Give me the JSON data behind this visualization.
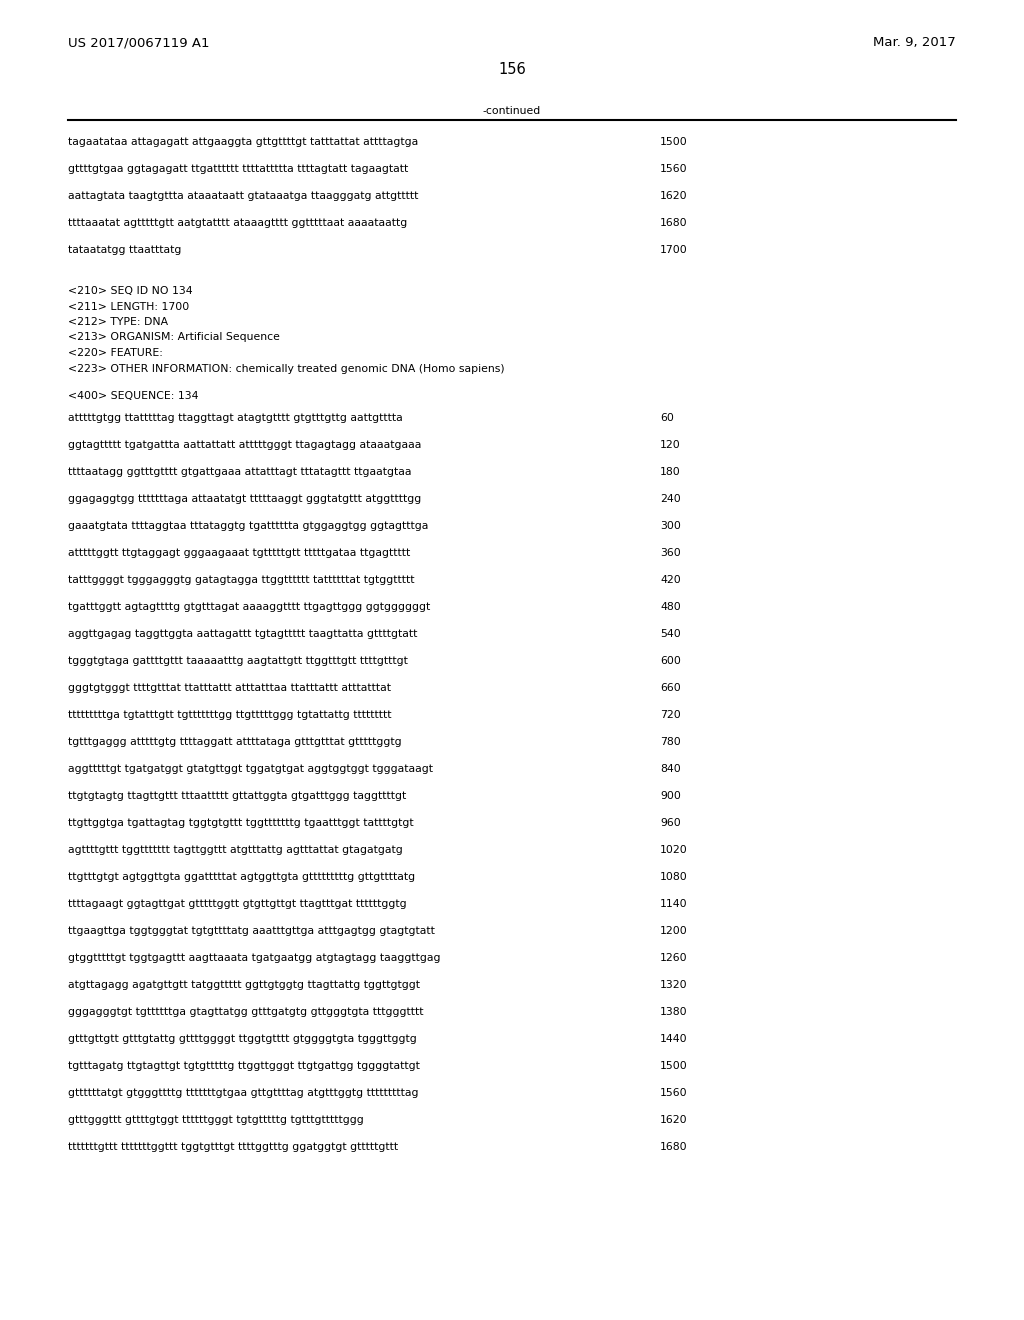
{
  "header_left": "US 2017/0067119 A1",
  "header_right": "Mar. 9, 2017",
  "page_number": "156",
  "continued_label": "-continued",
  "background_color": "#ffffff",
  "text_color": "#000000",
  "font_size_header": 9.5,
  "font_size_body": 7.8,
  "font_size_page": 10.5,
  "cont_lines": [
    [
      "tagaatataa attagagatt attgaaggta gttgttttgt tatttattat attttagtga",
      "1500"
    ],
    [
      "gttttgtgaa ggtagagatt ttgatttttt ttttattttta ttttagtatt tagaagtatt",
      "1560"
    ],
    [
      "aattagtata taagtgttta ataaataatt gtataaatga ttaagggatg attgttttt",
      "1620"
    ],
    [
      "ttttaaatat agtttttgtt aatgtatttt ataaagtttt ggtttttaat aaaataattg",
      "1680"
    ],
    [
      "tataatatgg ttaatttatg",
      "1700"
    ]
  ],
  "meta_lines": [
    "<210> SEQ ID NO 134",
    "<211> LENGTH: 1700",
    "<212> TYPE: DNA",
    "<213> ORGANISM: Artificial Sequence",
    "<220> FEATURE:",
    "<223> OTHER INFORMATION: chemically treated genomic DNA (Homo sapiens)"
  ],
  "seq_header": "<400> SEQUENCE: 134",
  "seq_lines": [
    [
      "atttttgtgg ttatttttag ttaggttagt atagtgtttt gtgtttgttg aattgtttta",
      "60"
    ],
    [
      "ggtagttttt tgatgattta aattattatt atttttgggt ttagagtagg ataaatgaaa",
      "120"
    ],
    [
      "ttttaatagg ggtttgtttt gtgattgaaa attatttagt tttatagttt ttgaatgtaa",
      "180"
    ],
    [
      "ggagaggtgg tttttttaga attaatatgt tttttaaggt gggtatgttt atggttttgg",
      "240"
    ],
    [
      "gaaatgtata ttttaggtaa tttataggtg tgatttttta gtggaggtgg ggtagtttga",
      "300"
    ],
    [
      "atttttggtt ttgtaggagt gggaagaaat tgtttttgtt tttttgataa ttgagttttt",
      "360"
    ],
    [
      "tatttggggt tgggagggtg gatagtagga ttggtttttt tattttttat tgtggttttt",
      "420"
    ],
    [
      "tgatttggtt agtagttttg gtgtttagat aaaaggtttt ttgagttggg ggtggggggt",
      "480"
    ],
    [
      "aggttgagag taggttggta aattagattt tgtagttttt taagttatta gttttgtatt",
      "540"
    ],
    [
      "tgggtgtaga gattttgttt taaaaatttg aagtattgtt ttggtttgtt ttttgtttgt",
      "600"
    ],
    [
      "gggtgtgggt ttttgtttat ttatttattt atttatttaa ttatttattt atttatttat",
      "660"
    ],
    [
      "tttttttttga tgtatttgtt tgtttttttgg ttgtttttggg tgtattattg ttttttttt",
      "720"
    ],
    [
      "tgtttgaggg atttttgtg ttttaggatt attttataga gtttgtttat gtttttggtg",
      "780"
    ],
    [
      "aggtttttgt tgatgatggt gtatgttggt tggatgtgat aggtggtggt tgggataagt",
      "840"
    ],
    [
      "ttgtgtagtg ttagttgttt tttaattttt gttattggta gtgatttggg taggttttgt",
      "900"
    ],
    [
      "ttgttggtga tgattagtag tggtgtgttt tggtttttttg tgaatttggt tattttgtgt",
      "960"
    ],
    [
      "agttttgttt tggttttttt tagttggttt atgtttattg agtttattat gtagatgatg",
      "1020"
    ],
    [
      "ttgtttgtgt agtggttgta ggatttttat agtggttgta gtttttttttg gttgttttatg",
      "1080"
    ],
    [
      "ttttagaagt ggtagttgat gtttttggtt gtgttgttgt ttagtttgat ttttttggtg",
      "1140"
    ],
    [
      "ttgaagttga tggtgggtat tgtgttttatg aaatttgttga atttgagtgg gtagtgtatt",
      "1200"
    ],
    [
      "gtggtttttgt tggtgagttt aagttaaata tgatgaatgg atgtagtagg taaggttgag",
      "1260"
    ],
    [
      "atgttagagg agatgttgtt tatggttttt ggttgtggtg ttagttattg tggttgtggt",
      "1320"
    ],
    [
      "gggagggtgt tgttttttga gtagttatgg gtttgatgtg gttgggtgta tttgggtttt",
      "1380"
    ],
    [
      "gtttgttgtt gtttgtattg gttttggggt ttggtgtttt gtggggtgta tgggttggtg",
      "1440"
    ],
    [
      "tgtttagatg ttgtagttgt tgtgtttttg ttggttgggt ttgtgattgg tggggtattgt",
      "1500"
    ],
    [
      "gttttttatgt gtgggttttg tttttttgtgaa gttgttttag atgtttggtg tttttttttag",
      "1560"
    ],
    [
      "gtttgggttt gttttgtggt ttttttgggt tgtgtttttg tgtttgtttttggg",
      "1620"
    ],
    [
      "tttttttgttt tttttttggttt tggtgtttgt ttttggtttg ggatggtgt gtttttgttt",
      "1680"
    ]
  ]
}
